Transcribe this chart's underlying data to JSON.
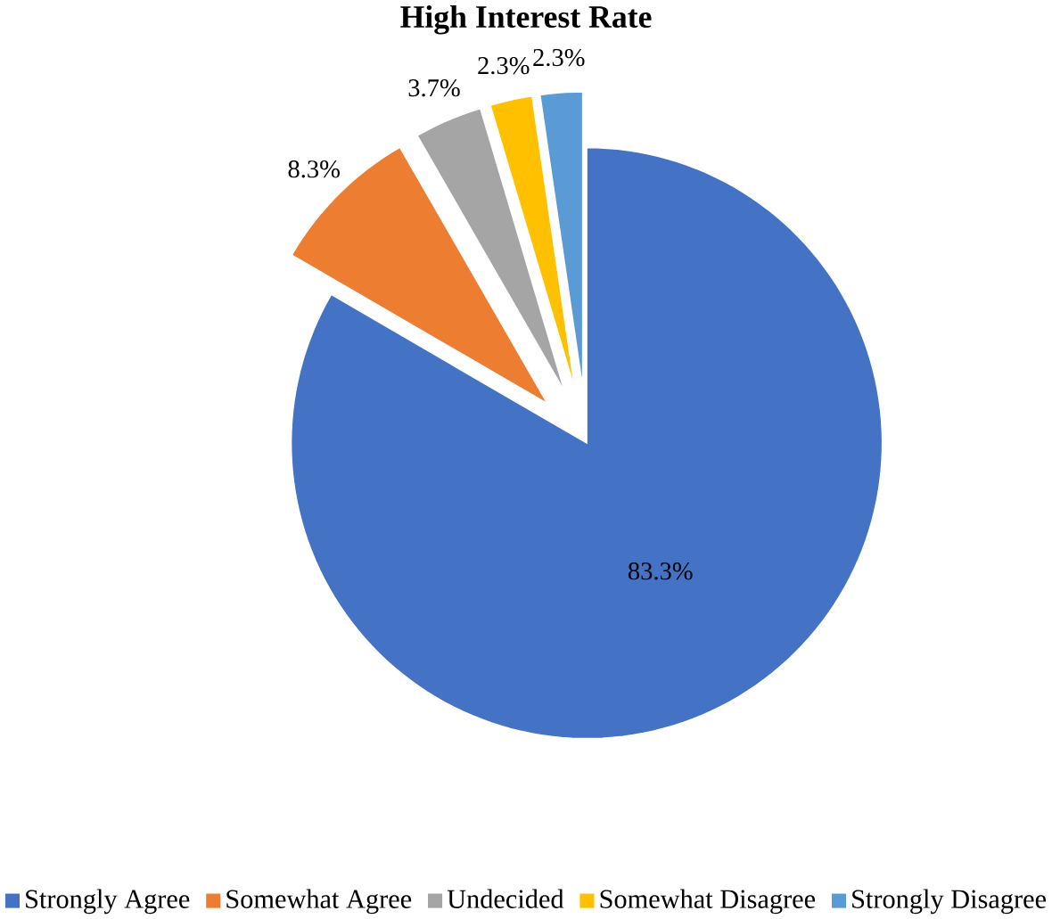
{
  "chart_data": {
    "type": "pie",
    "title": "High Interest Rate",
    "categories": [
      "Strongly Agree",
      "Somewhat Agree",
      "Undecided",
      "Somewhat Disagree",
      "Strongly Disagree"
    ],
    "values": [
      83.3,
      8.3,
      3.7,
      2.3,
      2.3
    ],
    "colors": [
      "#4472c4",
      "#ed7d31",
      "#a5a5a5",
      "#ffc000",
      "#5b9bd5"
    ],
    "value_labels": [
      "83.3%",
      "8.3%",
      "3.7%",
      "2.3%",
      "2.3%"
    ],
    "legend": "bottom"
  }
}
